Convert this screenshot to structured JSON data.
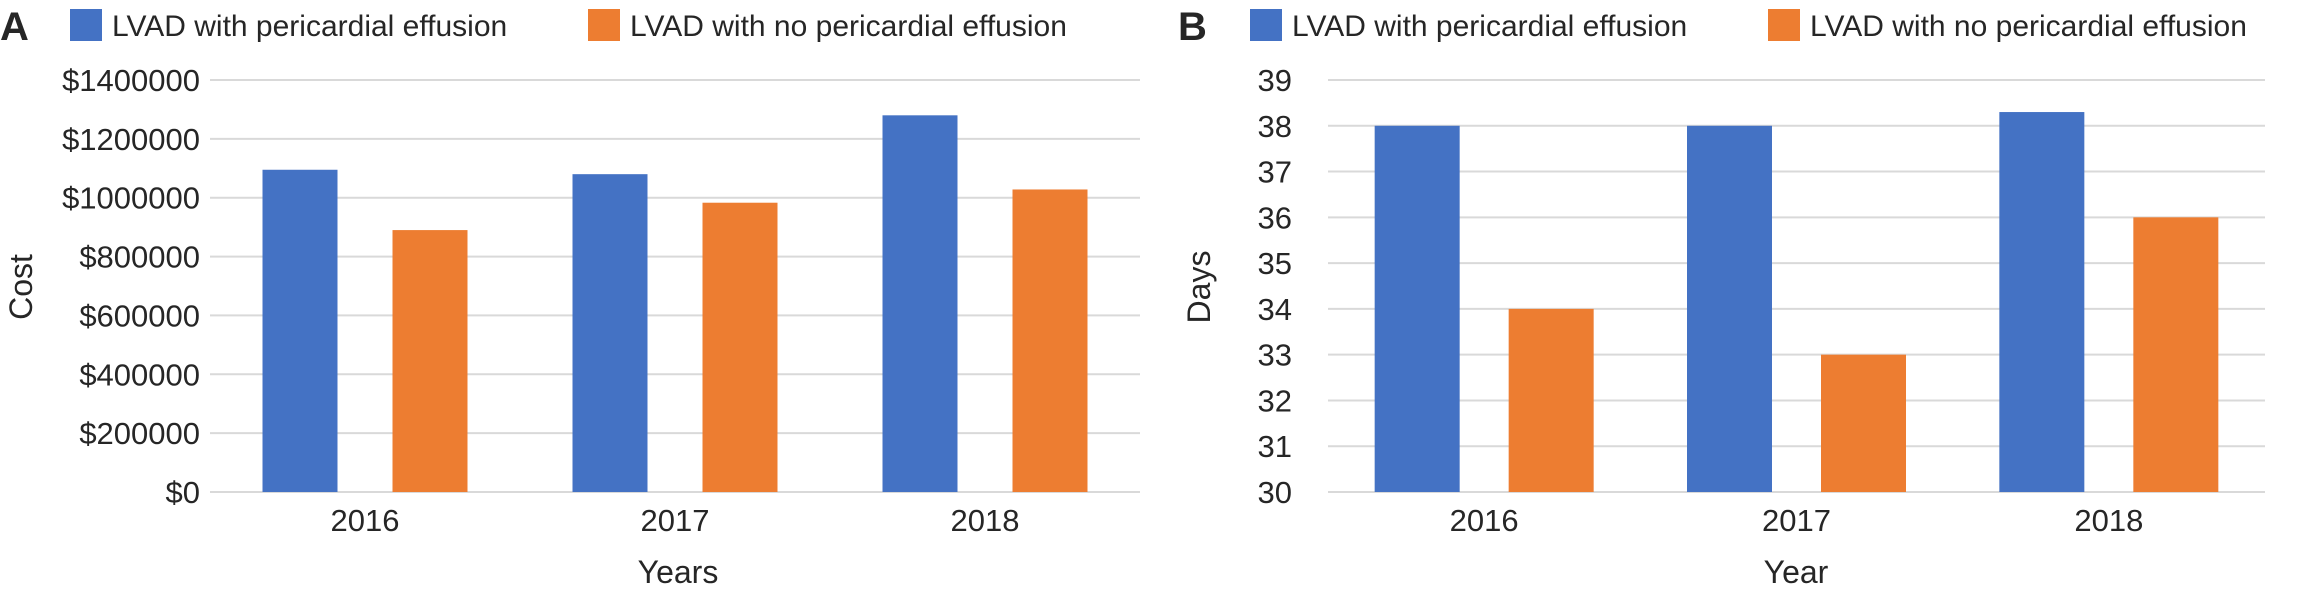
{
  "colors": {
    "series1": "#4472C4",
    "series2": "#ED7D31",
    "grid": "#D9D9D9",
    "text": "#262626"
  },
  "chart_data": [
    {
      "panel_label": "A",
      "type": "bar",
      "categories": [
        "2016",
        "2017",
        "2018"
      ],
      "series": [
        {
          "name": "LVAD with pericardial effusion",
          "values": [
            1095000,
            1080000,
            1280000
          ]
        },
        {
          "name": "LVAD with no pericardial effusion",
          "values": [
            890000,
            983000,
            1028000
          ]
        }
      ],
      "xlabel": "Years",
      "ylabel": "Cost",
      "ylim": [
        0,
        1400000
      ],
      "yticks": [
        0,
        200000,
        400000,
        600000,
        800000,
        1000000,
        1200000,
        1400000
      ],
      "ytick_labels": [
        "$0",
        "$200000",
        "$400000",
        "$600000",
        "$800000",
        "$1000000",
        "$1200000",
        "$1400000"
      ],
      "grid": true,
      "legend": "top"
    },
    {
      "panel_label": "B",
      "type": "bar",
      "categories": [
        "2016",
        "2017",
        "2018"
      ],
      "series": [
        {
          "name": "LVAD with pericardial effusion",
          "values": [
            38,
            38,
            38.3
          ]
        },
        {
          "name": "LVAD with no pericardial effusion",
          "values": [
            34,
            33,
            36
          ]
        }
      ],
      "xlabel": "Year",
      "ylabel": "Days",
      "ylim": [
        30,
        39
      ],
      "yticks": [
        30,
        31,
        32,
        33,
        34,
        35,
        36,
        37,
        38,
        39
      ],
      "ytick_labels": [
        "30",
        "31",
        "32",
        "33",
        "34",
        "35",
        "36",
        "37",
        "38",
        "39"
      ],
      "grid": true,
      "legend": "top"
    }
  ]
}
